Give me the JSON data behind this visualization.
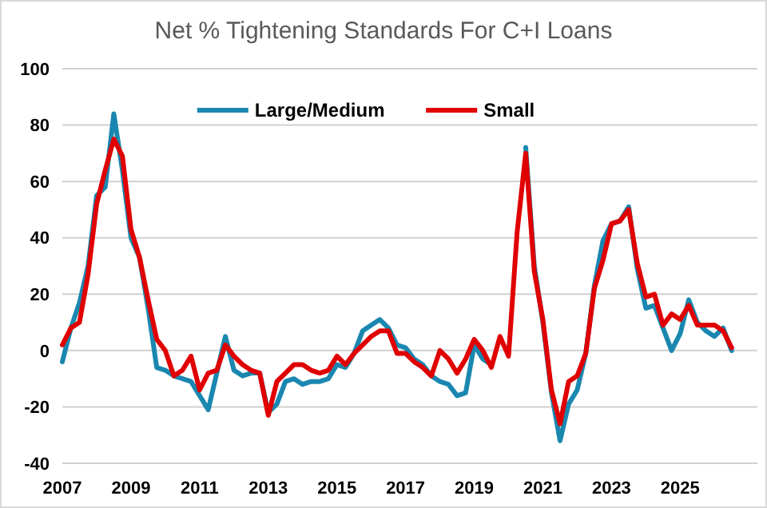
{
  "chart_data": {
    "type": "line",
    "title": "Net % Tightening Standards For C+I Loans",
    "x": [
      2007,
      2007.25,
      2007.5,
      2007.75,
      2008,
      2008.25,
      2008.5,
      2008.75,
      2009,
      2009.25,
      2009.5,
      2009.75,
      2010,
      2010.25,
      2010.5,
      2010.75,
      2011,
      2011.25,
      2011.5,
      2011.75,
      2012,
      2012.25,
      2012.5,
      2012.75,
      2013,
      2013.25,
      2013.5,
      2013.75,
      2014,
      2014.25,
      2014.5,
      2014.75,
      2015,
      2015.25,
      2015.5,
      2015.75,
      2016,
      2016.25,
      2016.5,
      2016.75,
      2017,
      2017.25,
      2017.5,
      2017.75,
      2018,
      2018.25,
      2018.5,
      2018.75,
      2019,
      2019.25,
      2019.5,
      2019.75,
      2020,
      2020.25,
      2020.5,
      2020.75,
      2021,
      2021.25,
      2021.5,
      2021.75,
      2022,
      2022.25,
      2022.5,
      2022.75,
      2023,
      2023.25,
      2023.5,
      2023.75,
      2024,
      2024.25,
      2024.5,
      2024.75,
      2025,
      2025.25,
      2025.5,
      2025.75,
      2026,
      2026.25,
      2026.5
    ],
    "series": [
      {
        "name": "Large/Medium",
        "color": "#1a87b0",
        "values": [
          -4,
          8,
          17,
          30,
          55,
          58,
          84,
          64,
          40,
          33,
          15,
          -6,
          -7,
          -9,
          -10,
          -11,
          -16,
          -21,
          -8,
          5,
          -7,
          -9,
          -8,
          -8,
          -22,
          -19,
          -11,
          -10,
          -12,
          -11,
          -11,
          -10,
          -5,
          -6,
          -1,
          7,
          9,
          11,
          8,
          2,
          1,
          -3,
          -5,
          -9,
          -11,
          -12,
          -16,
          -15,
          2,
          -3,
          -5,
          null,
          null,
          null,
          72,
          30,
          10,
          -15,
          -32,
          -19,
          -14,
          -1,
          23,
          39,
          45,
          46,
          51,
          29,
          15,
          16,
          8,
          0,
          6,
          18,
          10,
          7,
          5,
          8,
          0
        ]
      },
      {
        "name": "Small",
        "color": "#e00000",
        "values": [
          2,
          8,
          10,
          27,
          52,
          64,
          75,
          69,
          43,
          33,
          18,
          4,
          0,
          -9,
          -7,
          -2,
          -14,
          -8,
          -7,
          2,
          -2,
          -5,
          -7,
          -8,
          -23,
          -11,
          -8,
          -5,
          -5,
          -7,
          -8,
          -7,
          -2,
          -5,
          -1,
          2,
          5,
          7,
          7,
          -1,
          -1,
          -4,
          -6,
          -9,
          0,
          -3,
          -8,
          -3,
          4,
          0,
          -6,
          5,
          -2,
          42,
          70,
          28,
          11,
          -14,
          -26,
          -11,
          -9,
          -1,
          22,
          32,
          45,
          46,
          50,
          31,
          19,
          20,
          9,
          13,
          11,
          16,
          9,
          9,
          9,
          7,
          1
        ]
      }
    ],
    "xlim": [
      2007,
      2027.25
    ],
    "xticks": [
      2007,
      2009,
      2011,
      2013,
      2015,
      2017,
      2019,
      2021,
      2023,
      2025
    ],
    "ylim": [
      -40,
      100
    ],
    "yticks": [
      -40,
      -20,
      0,
      20,
      40,
      60,
      80,
      100
    ],
    "grid": "y",
    "legend": "top",
    "marker": "none",
    "line_style": "solid"
  }
}
